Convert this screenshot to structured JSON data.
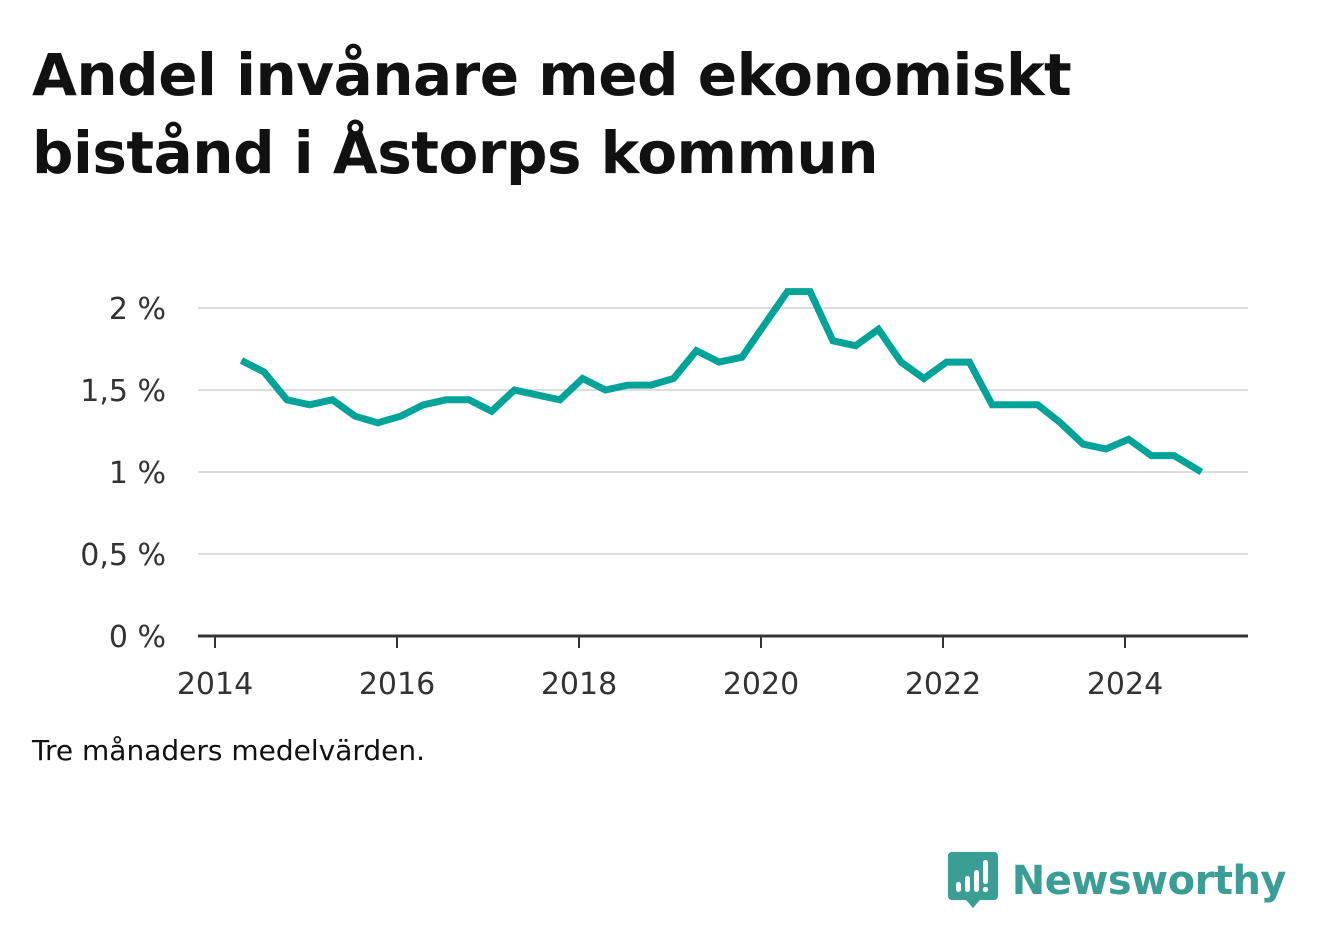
{
  "title": "Andel invånare med ekonomiskt bistånd i Åstorps kommun",
  "note": "Tre månaders medelvärden.",
  "brand": {
    "name": "Newsworthy",
    "icon": "bar-chart-speech-bubble-icon",
    "color": "#3a9e95"
  },
  "chart_data": {
    "type": "line",
    "title": "Andel invånare med ekonomiskt bistånd i Åstorps kommun",
    "xlabel": "",
    "ylabel": "",
    "xlim": [
      2014.0,
      2025.5
    ],
    "ylim": [
      0,
      2.2
    ],
    "x_ticks": [
      2014,
      2016,
      2018,
      2020,
      2022,
      2024
    ],
    "x_tick_labels": [
      "2014",
      "2016",
      "2018",
      "2020",
      "2022",
      "2024"
    ],
    "y_ticks": [
      0,
      0.5,
      1,
      1.5,
      2
    ],
    "y_tick_labels": [
      "0 %",
      "0,5 %",
      "1 %",
      "1,5 %",
      "2 %"
    ],
    "grid": true,
    "series": [
      {
        "color": "#00a398",
        "x": [
          2014.29,
          2014.54,
          2014.79,
          2015.04,
          2015.29,
          2015.54,
          2015.79,
          2016.04,
          2016.29,
          2016.54,
          2016.79,
          2017.04,
          2017.29,
          2017.54,
          2017.79,
          2018.04,
          2018.29,
          2018.54,
          2018.79,
          2019.04,
          2019.29,
          2019.54,
          2019.79,
          2020.04,
          2020.29,
          2020.54,
          2020.79,
          2021.04,
          2021.29,
          2021.54,
          2021.79,
          2022.04,
          2022.29,
          2022.54,
          2022.79,
          2023.04,
          2023.29,
          2023.54,
          2023.79,
          2024.04,
          2024.29,
          2024.54,
          2024.84
        ],
        "values": [
          1.68,
          1.61,
          1.44,
          1.41,
          1.44,
          1.34,
          1.3,
          1.34,
          1.41,
          1.44,
          1.44,
          1.37,
          1.5,
          1.47,
          1.44,
          1.57,
          1.5,
          1.53,
          1.53,
          1.57,
          1.74,
          1.67,
          1.7,
          1.9,
          2.1,
          2.1,
          1.8,
          1.77,
          1.87,
          1.67,
          1.57,
          1.67,
          1.67,
          1.41,
          1.41,
          1.41,
          1.3,
          1.17,
          1.14,
          1.2,
          1.1,
          1.1,
          1.0
        ]
      }
    ]
  }
}
